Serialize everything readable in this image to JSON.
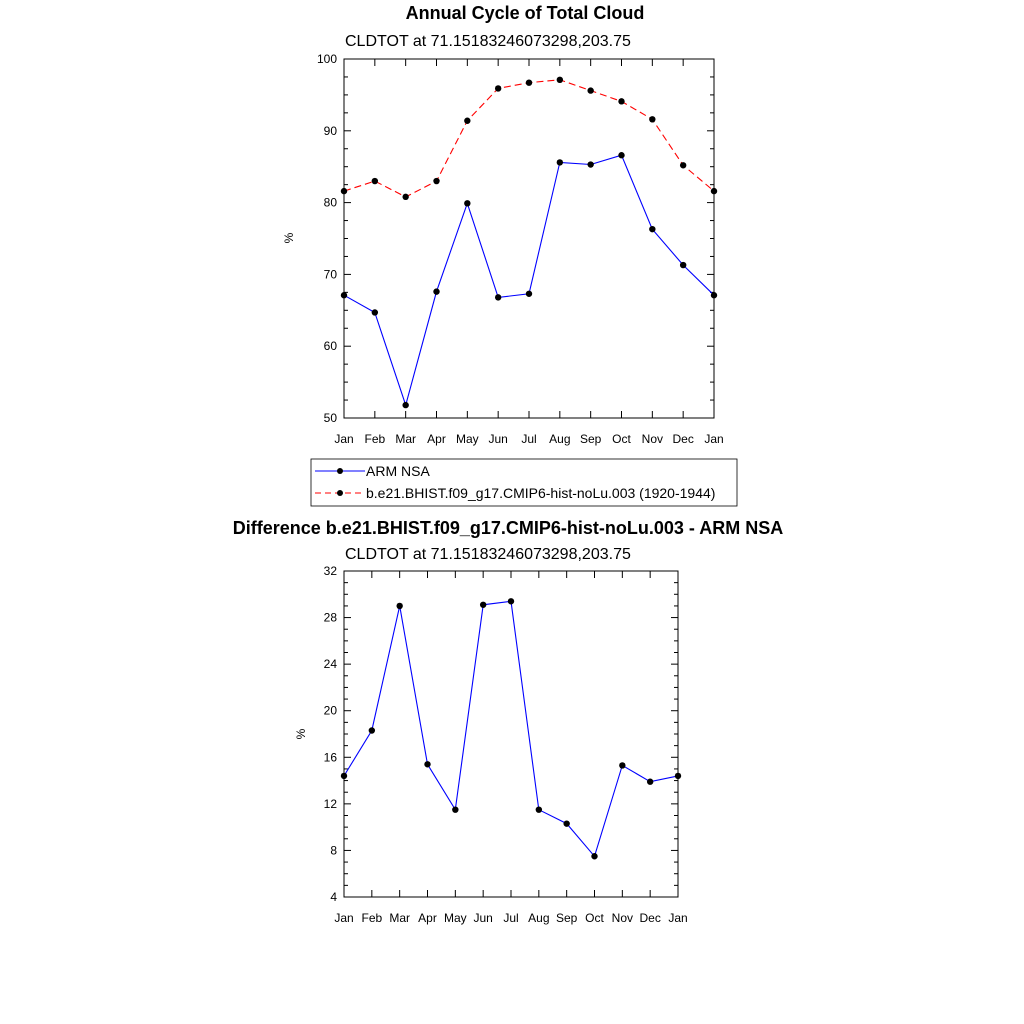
{
  "chart_data": [
    {
      "type": "line",
      "title": "Annual Cycle of Total Cloud",
      "subtitle": "CLDTOT at 71.15183246073298,203.75",
      "xlabel": "",
      "ylabel": "%",
      "categories": [
        "Jan",
        "Feb",
        "Mar",
        "Apr",
        "May",
        "Jun",
        "Jul",
        "Aug",
        "Sep",
        "Oct",
        "Nov",
        "Dec",
        "Jan"
      ],
      "ylim": [
        50,
        100
      ],
      "yticks": [
        50,
        60,
        70,
        80,
        90,
        100
      ],
      "grid": false,
      "legend_position": "bottom",
      "series": [
        {
          "name": "ARM NSA",
          "color": "#0000ff",
          "dash": "solid",
          "values": [
            67.1,
            64.7,
            51.8,
            67.6,
            79.9,
            66.8,
            67.3,
            85.6,
            85.3,
            86.6,
            76.3,
            71.3,
            67.1
          ]
        },
        {
          "name": "b.e21.BHIST.f09_g17.CMIP6-hist-noLu.003 (1920-1944)",
          "color": "#ff0000",
          "dash": "dashed",
          "values": [
            81.6,
            83.0,
            80.8,
            83.0,
            91.4,
            95.9,
            96.7,
            97.1,
            95.6,
            94.1,
            91.6,
            85.2,
            81.6
          ]
        }
      ]
    },
    {
      "type": "line",
      "title": "Difference b.e21.BHIST.f09_g17.CMIP6-hist-noLu.003 - ARM NSA",
      "subtitle": "CLDTOT at 71.15183246073298,203.75",
      "xlabel": "",
      "ylabel": "%",
      "categories": [
        "Jan",
        "Feb",
        "Mar",
        "Apr",
        "May",
        "Jun",
        "Jul",
        "Aug",
        "Sep",
        "Oct",
        "Nov",
        "Dec",
        "Jan"
      ],
      "ylim": [
        4,
        32
      ],
      "yticks": [
        4,
        8,
        12,
        16,
        20,
        24,
        28,
        32
      ],
      "grid": false,
      "series": [
        {
          "color": "#0000ff",
          "dash": "solid",
          "values": [
            14.4,
            18.3,
            29.0,
            15.4,
            11.5,
            29.1,
            29.4,
            11.5,
            10.3,
            7.5,
            15.3,
            13.9,
            14.4
          ]
        }
      ]
    }
  ]
}
